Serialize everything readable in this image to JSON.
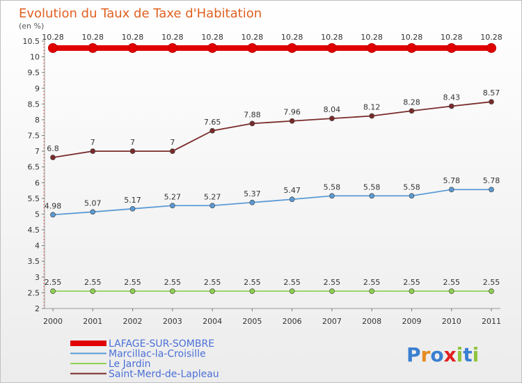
{
  "chart_data": {
    "type": "line",
    "title": "Evolution du Taux de Taxe d'Habitation",
    "subtitle": "(en %)",
    "xlabel": "",
    "ylabel": "",
    "x": [
      "2000",
      "2001",
      "2002",
      "2003",
      "2004",
      "2005",
      "2006",
      "2007",
      "2008",
      "2009",
      "2010",
      "2011"
    ],
    "ylim": [
      2,
      10.5
    ],
    "yticks": [
      "2",
      "2.5",
      "3",
      "3.5",
      "4",
      "4.5",
      "5",
      "5.5",
      "6",
      "6.5",
      "7",
      "7.5",
      "8",
      "8.5",
      "9",
      "9.5",
      "10",
      "10.5"
    ],
    "grid": false,
    "legend_position": "bottom-left",
    "series": [
      {
        "name": "LAFAGE-SUR-SOMBRE",
        "color": "#e00000",
        "values": [
          10.28,
          10.28,
          10.28,
          10.28,
          10.28,
          10.28,
          10.28,
          10.28,
          10.28,
          10.28,
          10.28,
          10.28
        ],
        "labels": [
          "10.28",
          "10.28",
          "10.28",
          "10.28",
          "10.28",
          "10.28",
          "10.28",
          "10.28",
          "10.28",
          "10.28",
          "10.28",
          "10.28"
        ]
      },
      {
        "name": "Marcillac-la-Croisille",
        "color": "#5b9bd5",
        "values": [
          4.98,
          5.07,
          5.17,
          5.27,
          5.27,
          5.37,
          5.47,
          5.58,
          5.58,
          5.58,
          5.78,
          5.78
        ],
        "labels": [
          "4.98",
          "5.07",
          "5.17",
          "5.27",
          "5.27",
          "5.37",
          "5.47",
          "5.58",
          "5.58",
          "5.58",
          "5.78",
          "5.78"
        ]
      },
      {
        "name": "Le Jardin",
        "color": "#8fd14f",
        "values": [
          2.55,
          2.55,
          2.55,
          2.55,
          2.55,
          2.55,
          2.55,
          2.55,
          2.55,
          2.55,
          2.55,
          2.55
        ],
        "labels": [
          "2.55",
          "2.55",
          "2.55",
          "2.55",
          "2.55",
          "2.55",
          "2.55",
          "2.55",
          "2.55",
          "2.55",
          "2.55",
          "2.55"
        ]
      },
      {
        "name": "Saint-Merd-de-Lapleau",
        "color": "#7a2a2a",
        "values": [
          6.8,
          7,
          7,
          7,
          7.65,
          7.88,
          7.96,
          8.04,
          8.12,
          8.28,
          8.43,
          8.57
        ],
        "labels": [
          "6.8",
          "7",
          "7",
          "7",
          "7.65",
          "7.88",
          "7.96",
          "8.04",
          "8.12",
          "8.28",
          "8.43",
          "8.57"
        ]
      }
    ]
  },
  "logo": {
    "text": "Proxiti"
  }
}
